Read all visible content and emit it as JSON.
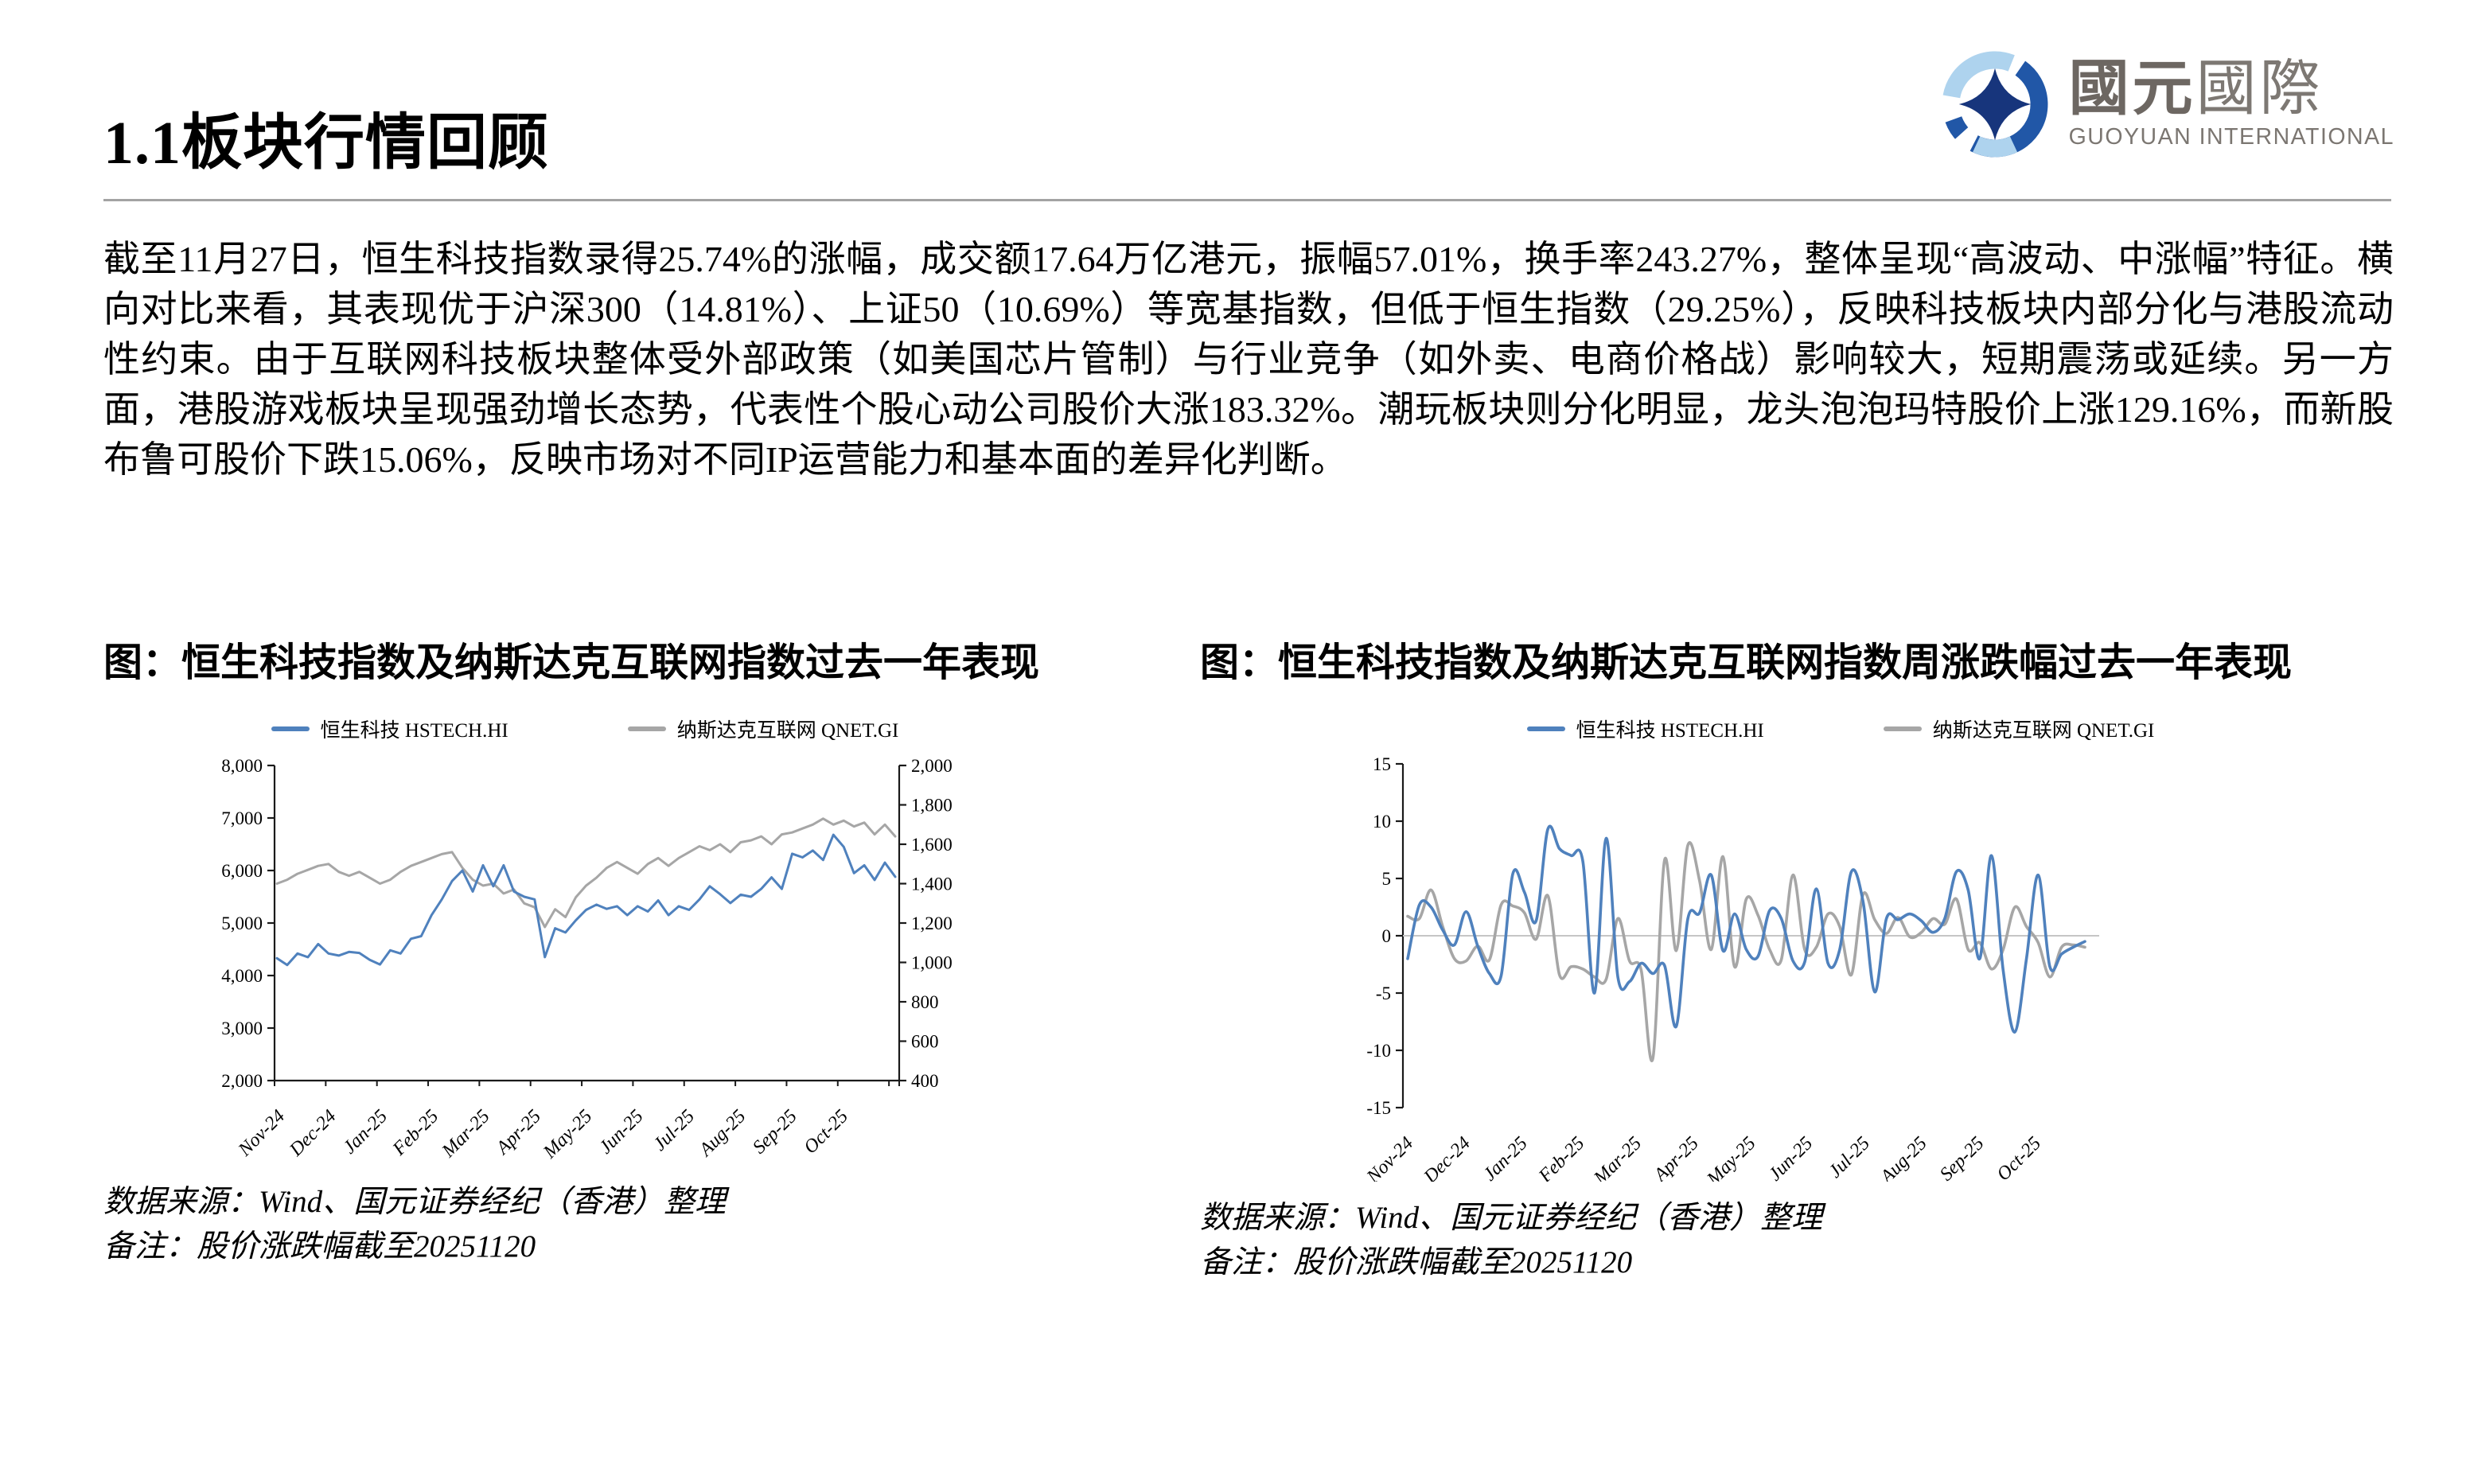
{
  "page": {
    "title": "1.1板块行情回顾"
  },
  "logo": {
    "zh_bold": "國元",
    "zh_light": "國際",
    "en": "GUOYUAN INTERNATIONAL"
  },
  "body_paragraph": "截至11月27日，恒生科技指数录得25.74%的涨幅，成交额17.64万亿港元，振幅57.01%，换手率243.27%，整体呈现“高波动、中涨幅”特征。横向对比来看，其表现优于沪深300（14.81%）、上证50（10.69%）等宽基指数，但低于恒生指数（29.25%），反映科技板块内部分化与港股流动性约束。由于互联网科技板块整体受外部政策（如美国芯片管制）与行业竞争（如外卖、电商价格战）影响较大，短期震荡或延续。另一方面，港股游戏板块呈现强劲增长态势，代表性个股心动公司股价大涨183.32%。潮玩板块则分化明显，龙头泡泡玛特股价上涨129.16%，而新股布鲁可股价下跌15.06%，反映市场对不同IP运营能力和基本面的差异化判断。",
  "notes": {
    "source": "数据来源：Wind、国元证券经纪（香港）整理",
    "remark": "备注：股价涨跌幅截至20251120"
  },
  "colors": {
    "hstech_blue": "#4f81bd",
    "qnet_gray": "#a6a6a6",
    "axis": "#1a1a1a",
    "zero_line": "#c6c6c6",
    "separator": "#a3a3a3",
    "logo_blue": "#2157a7",
    "logo_light_blue": "#aed3ee",
    "logo_navy": "#17357c"
  },
  "chart_data": [
    {
      "type": "line",
      "title": "图：恒生科技指数及纳斯达克互联网指数过去一年表现",
      "x_labels": [
        "Nov-24",
        "Dec-24",
        "Jan-25",
        "Feb-25",
        "Mar-25",
        "Apr-25",
        "May-25",
        "Jun-25",
        "Jul-25",
        "Aug-25",
        "Sep-25",
        "Oct-25"
      ],
      "left_axis": {
        "min": 2000,
        "max": 8000,
        "step": 1000
      },
      "right_axis": {
        "min": 400,
        "max": 2000,
        "step": 200
      },
      "grid": false,
      "legend_position": "top",
      "series": [
        {
          "name": "恒生科技 HSTECH.HI",
          "axis": "left",
          "color": "#4f81bd",
          "values": [
            4330,
            4200,
            4420,
            4350,
            4600,
            4420,
            4380,
            4450,
            4430,
            4300,
            4210,
            4480,
            4420,
            4700,
            4750,
            5150,
            5450,
            5800,
            6000,
            5600,
            6100,
            5700,
            6100,
            5600,
            5500,
            5450,
            4350,
            4900,
            4820,
            5050,
            5250,
            5350,
            5270,
            5320,
            5150,
            5320,
            5220,
            5430,
            5150,
            5320,
            5250,
            5450,
            5700,
            5550,
            5380,
            5540,
            5500,
            5650,
            5870,
            5650,
            6320,
            6250,
            6380,
            6200,
            6680,
            6450,
            5950,
            6100,
            5820,
            6150,
            5880
          ]
        },
        {
          "name": "纳斯达克互联网 QNET.GI",
          "axis": "right",
          "color": "#a6a6a6",
          "values": [
            1400,
            1420,
            1450,
            1470,
            1490,
            1500,
            1460,
            1440,
            1460,
            1430,
            1400,
            1420,
            1460,
            1490,
            1510,
            1530,
            1550,
            1560,
            1480,
            1420,
            1390,
            1400,
            1350,
            1370,
            1300,
            1280,
            1180,
            1270,
            1230,
            1330,
            1390,
            1430,
            1480,
            1510,
            1480,
            1450,
            1500,
            1530,
            1490,
            1530,
            1560,
            1590,
            1570,
            1600,
            1560,
            1610,
            1620,
            1640,
            1600,
            1650,
            1660,
            1680,
            1700,
            1730,
            1700,
            1720,
            1690,
            1710,
            1650,
            1700,
            1640
          ]
        }
      ]
    },
    {
      "type": "line",
      "title": "图：恒生科技指数及纳斯达克互联网指数周涨跌幅过去一年表现",
      "x_labels": [
        "Nov-24",
        "Dec-24",
        "Jan-25",
        "Feb-25",
        "Mar-25",
        "Apr-25",
        "May-25",
        "Jun-25",
        "Jul-25",
        "Aug-25",
        "Sep-25",
        "Oct-25"
      ],
      "y_axis": {
        "min": -15,
        "max": 15,
        "step": 5
      },
      "unit": "%",
      "zero_line": true,
      "grid": false,
      "legend_position": "top",
      "series": [
        {
          "name": "恒生科技 HSTECH.HI",
          "color": "#4f81bd",
          "values": [
            -2.0,
            2.7,
            2.5,
            0.5,
            -0.8,
            2.1,
            -0.9,
            -3.3,
            -3.5,
            5.4,
            3.8,
            1.3,
            9.3,
            7.6,
            7.0,
            6.5,
            -5.0,
            8.5,
            -3.6,
            -4.0,
            -2.4,
            -3.3,
            -2.6,
            -7.9,
            1.5,
            2.0,
            5.3,
            -1.3,
            1.9,
            -1.2,
            -1.8,
            2.2,
            1.5,
            -2.2,
            -2.3,
            4.1,
            -2.4,
            -1.2,
            5.6,
            3.0,
            -4.9,
            1.5,
            1.4,
            1.9,
            1.3,
            0.3,
            1.5,
            5.6,
            4.0,
            -2.0,
            7.0,
            -3.0,
            -8.4,
            -2.0,
            5.3,
            -2.7,
            -1.6,
            -1.0,
            -0.5
          ]
        },
        {
          "name": "纳斯达克互联网 QNET.GI",
          "color": "#a6a6a6",
          "values": [
            1.7,
            1.5,
            4.0,
            0.8,
            -2.0,
            -2.2,
            -0.9,
            -2.1,
            2.7,
            2.6,
            2.0,
            -0.3,
            3.5,
            -3.4,
            -2.7,
            -2.9,
            -3.6,
            -3.8,
            1.5,
            -2.2,
            -3.0,
            -10.7,
            6.6,
            -1.3,
            7.9,
            4.8,
            -1.2,
            6.9,
            -2.7,
            3.2,
            1.8,
            -1.2,
            -2.1,
            5.3,
            -1.2,
            -1.0,
            1.9,
            0.8,
            -3.4,
            3.6,
            1.4,
            0.2,
            1.6,
            -0.1,
            0.3,
            1.5,
            1.0,
            3.2,
            -1.2,
            -0.6,
            -2.9,
            -1.2,
            2.5,
            0.8,
            -0.6,
            -3.6,
            -1.0,
            -0.8,
            -1.0
          ]
        }
      ]
    }
  ]
}
